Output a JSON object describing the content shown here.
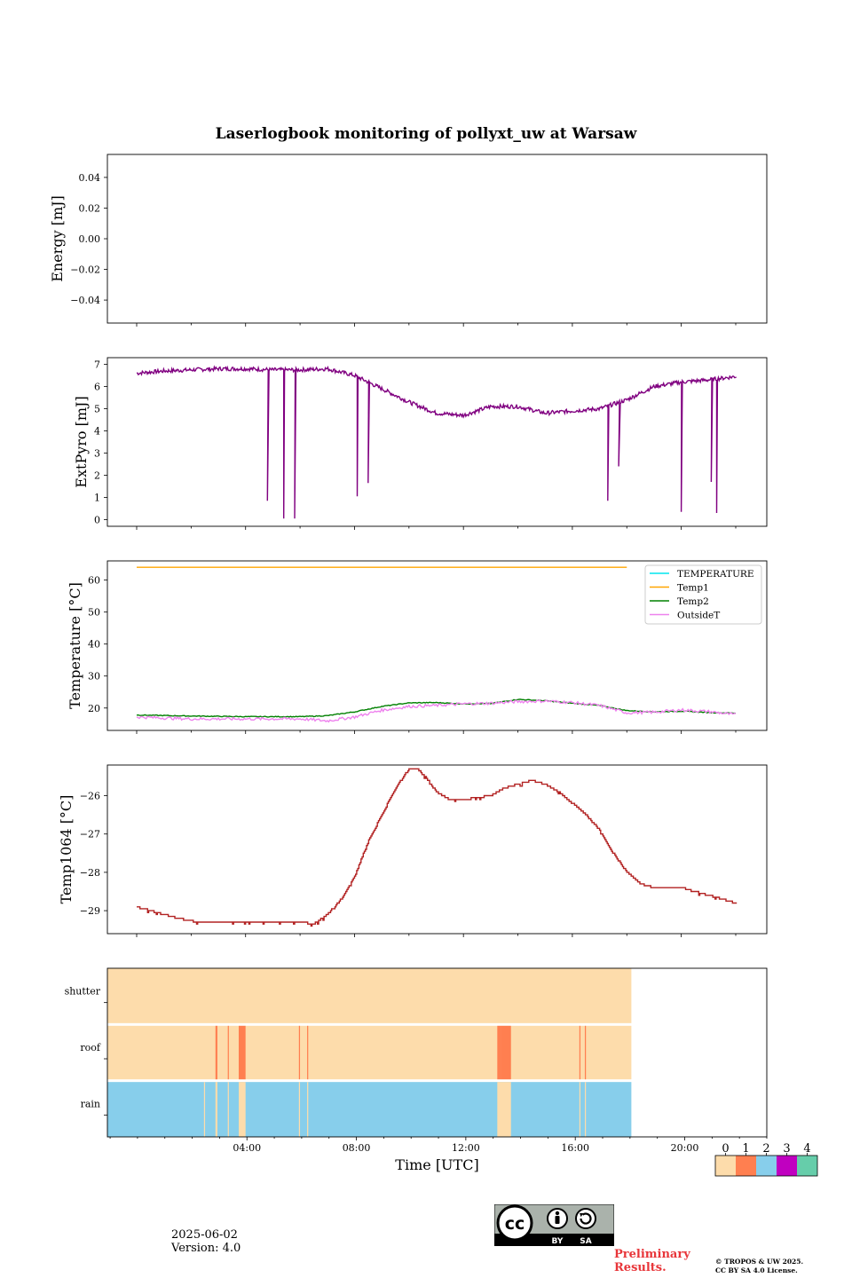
{
  "figure": {
    "title": "Laserlogbook monitoring of pollyxt_uw at Warsaw",
    "date": "2025-06-02",
    "version": "Version: 4.0",
    "preliminary": "Preliminary\nResults.",
    "copyright_line1": "© TROPOS & UW 2025.",
    "copyright_line2": "CC BY SA 4.0 License.",
    "license_badge": {
      "left": "BY",
      "right": "SA",
      "logo": "cc-icon"
    }
  },
  "chart_data": [
    {
      "type": "line",
      "ylabel": "Energy [mJ]",
      "ylim": [
        -0.055,
        0.055
      ],
      "yticks": [
        -0.04,
        -0.02,
        0.0,
        0.02,
        0.04
      ],
      "ytick_labels": [
        "−0.04",
        "−0.02",
        "0.00",
        "0.02",
        "0.04"
      ],
      "series": []
    },
    {
      "type": "line",
      "ylabel": "ExtPyro [mJ]",
      "ylim": [
        -0.3,
        7.3
      ],
      "yticks": [
        0,
        1,
        2,
        3,
        4,
        5,
        6,
        7
      ],
      "ytick_labels": [
        "0",
        "1",
        "2",
        "3",
        "4",
        "5",
        "6",
        "7"
      ],
      "color": "#800080",
      "baseline_hours": [
        0.0,
        1.0,
        2.0,
        3.0,
        4.0,
        5.0,
        6.0,
        7.0,
        8.0,
        9.0,
        10.0,
        11.0,
        12.0,
        13.0,
        14.0,
        15.0,
        16.0,
        17.0,
        18.0,
        19.0,
        20.0,
        21.0,
        22.0
      ],
      "baseline_values": [
        6.6,
        6.7,
        6.75,
        6.8,
        6.8,
        6.75,
        6.75,
        6.8,
        6.5,
        5.9,
        5.3,
        4.8,
        4.7,
        5.1,
        5.1,
        4.8,
        4.9,
        5.0,
        5.4,
        6.0,
        6.2,
        6.3,
        6.45
      ],
      "drops": [
        {
          "h": 4.8,
          "v": 0.85
        },
        {
          "h": 5.4,
          "v": 0.05
        },
        {
          "h": 5.8,
          "v": 0.05
        },
        {
          "h": 8.1,
          "v": 1.05
        },
        {
          "h": 8.5,
          "v": 1.65
        },
        {
          "h": 17.3,
          "v": 0.85
        },
        {
          "h": 17.7,
          "v": 2.4
        },
        {
          "h": 20.0,
          "v": 0.35
        },
        {
          "h": 21.1,
          "v": 1.7
        },
        {
          "h": 21.3,
          "v": 0.3
        }
      ]
    },
    {
      "type": "line",
      "ylabel": "Temperature [°C]",
      "ylim": [
        13,
        66
      ],
      "yticks": [
        20,
        30,
        40,
        50,
        60
      ],
      "ytick_labels": [
        "20",
        "30",
        "40",
        "50",
        "60"
      ],
      "legend": "top-right",
      "series": [
        {
          "name": "TEMPERATURE",
          "color": "#00e5ee",
          "hours": [],
          "values": []
        },
        {
          "name": "Temp1",
          "color": "#ffa500",
          "hours": [
            0.0,
            18.0
          ],
          "values": [
            64.0,
            64.0
          ]
        },
        {
          "name": "Temp2",
          "color": "#008000",
          "hours": [
            0.0,
            2.0,
            4.0,
            6.0,
            7.0,
            8.0,
            9.0,
            10.0,
            11.0,
            12.0,
            13.0,
            14.0,
            15.0,
            16.0,
            17.0,
            18.0,
            19.0,
            20.0,
            21.0,
            22.0
          ],
          "values": [
            17.8,
            17.5,
            17.3,
            17.3,
            17.6,
            18.8,
            20.5,
            21.6,
            21.7,
            21.3,
            21.4,
            22.7,
            22.3,
            21.5,
            20.8,
            19.2,
            18.8,
            19.0,
            18.6,
            18.4
          ]
        },
        {
          "name": "OutsideT",
          "color": "#ee82ee",
          "hours": [
            0.0,
            2.0,
            4.0,
            6.0,
            7.0,
            8.0,
            9.0,
            10.0,
            11.0,
            12.0,
            13.0,
            14.0,
            15.0,
            16.0,
            17.0,
            18.0,
            19.0,
            20.0,
            21.0,
            22.0
          ],
          "values": [
            17.2,
            16.6,
            16.6,
            16.6,
            16.0,
            17.2,
            19.3,
            20.5,
            20.8,
            21.3,
            21.5,
            22.0,
            22.2,
            21.7,
            20.8,
            18.5,
            18.7,
            19.4,
            18.9,
            17.9
          ]
        }
      ]
    },
    {
      "type": "line",
      "ylabel": "Temp1064 [°C]",
      "ylim": [
        -29.6,
        -25.2
      ],
      "yticks": [
        -29,
        -28,
        -27,
        -26
      ],
      "ytick_labels": [
        "−29",
        "−28",
        "−27",
        "−26"
      ],
      "color": "#b22222",
      "hours": [
        0.0,
        0.5,
        1.5,
        2.3,
        3.0,
        4.0,
        5.0,
        6.0,
        6.5,
        7.0,
        7.5,
        8.0,
        8.5,
        9.0,
        9.5,
        10.0,
        10.3,
        10.7,
        11.0,
        11.5,
        12.0,
        13.0,
        13.5,
        14.0,
        14.5,
        15.0,
        15.5,
        16.0,
        16.5,
        17.0,
        17.5,
        18.0,
        18.5,
        19.0,
        19.5,
        20.0,
        20.5,
        21.0,
        21.5,
        22.0
      ],
      "values": [
        -28.9,
        -29.0,
        -29.2,
        -29.3,
        -29.3,
        -29.3,
        -29.3,
        -29.3,
        -29.35,
        -29.1,
        -28.7,
        -28.1,
        -27.2,
        -26.5,
        -25.8,
        -25.3,
        -25.3,
        -25.6,
        -25.9,
        -26.1,
        -26.1,
        -26.0,
        -25.8,
        -25.7,
        -25.6,
        -25.7,
        -25.9,
        -26.2,
        -26.5,
        -26.9,
        -27.5,
        -28.0,
        -28.3,
        -28.4,
        -28.4,
        -28.4,
        -28.5,
        -28.6,
        -28.7,
        -28.8
      ]
    },
    {
      "type": "heatmap",
      "rows": [
        "shutter",
        "roof",
        "rain"
      ],
      "xlabel": "Time [UTC]",
      "xlim_hours": [
        -1.1,
        23.0
      ],
      "x_major_hours": [
        4,
        8,
        12,
        16,
        20
      ],
      "x_major_labels": [
        "04:00",
        "08:00",
        "12:00",
        "16:00",
        "20:00"
      ],
      "data_end_hour": 18.05,
      "row_base_values": [
        0,
        0,
        2
      ],
      "segments": [
        {
          "row": "roof",
          "h0": 2.85,
          "h1": 2.92,
          "value": 1
        },
        {
          "row": "roof",
          "h0": 3.3,
          "h1": 3.34,
          "value": 1
        },
        {
          "row": "roof",
          "h0": 3.7,
          "h1": 3.95,
          "value": 1
        },
        {
          "row": "roof",
          "h0": 5.9,
          "h1": 5.94,
          "value": 1
        },
        {
          "row": "roof",
          "h0": 6.2,
          "h1": 6.24,
          "value": 1
        },
        {
          "row": "roof",
          "h0": 13.15,
          "h1": 13.3,
          "value": 1
        },
        {
          "row": "roof",
          "h0": 13.3,
          "h1": 13.65,
          "value": 1
        },
        {
          "row": "roof",
          "h0": 16.15,
          "h1": 16.19,
          "value": 1
        },
        {
          "row": "roof",
          "h0": 16.35,
          "h1": 16.39,
          "value": 1
        },
        {
          "row": "rain",
          "h0": 2.43,
          "h1": 2.47,
          "value": 0
        },
        {
          "row": "rain",
          "h0": 2.85,
          "h1": 2.92,
          "value": 0
        },
        {
          "row": "rain",
          "h0": 3.3,
          "h1": 3.34,
          "value": 0
        },
        {
          "row": "rain",
          "h0": 3.7,
          "h1": 3.95,
          "value": 0
        },
        {
          "row": "rain",
          "h0": 5.9,
          "h1": 5.94,
          "value": 0
        },
        {
          "row": "rain",
          "h0": 6.2,
          "h1": 6.24,
          "value": 0
        },
        {
          "row": "rain",
          "h0": 13.15,
          "h1": 13.65,
          "value": 0
        },
        {
          "row": "rain",
          "h0": 16.15,
          "h1": 16.19,
          "value": 0
        },
        {
          "row": "rain",
          "h0": 16.35,
          "h1": 16.39,
          "value": 0
        }
      ],
      "colorbar": {
        "ticks": [
          "0",
          "1",
          "2",
          "3",
          "4"
        ],
        "colors": [
          "#fddcab",
          "#ff7f50",
          "#87ceeb",
          "#c000c0",
          "#66cdaa"
        ]
      }
    }
  ]
}
